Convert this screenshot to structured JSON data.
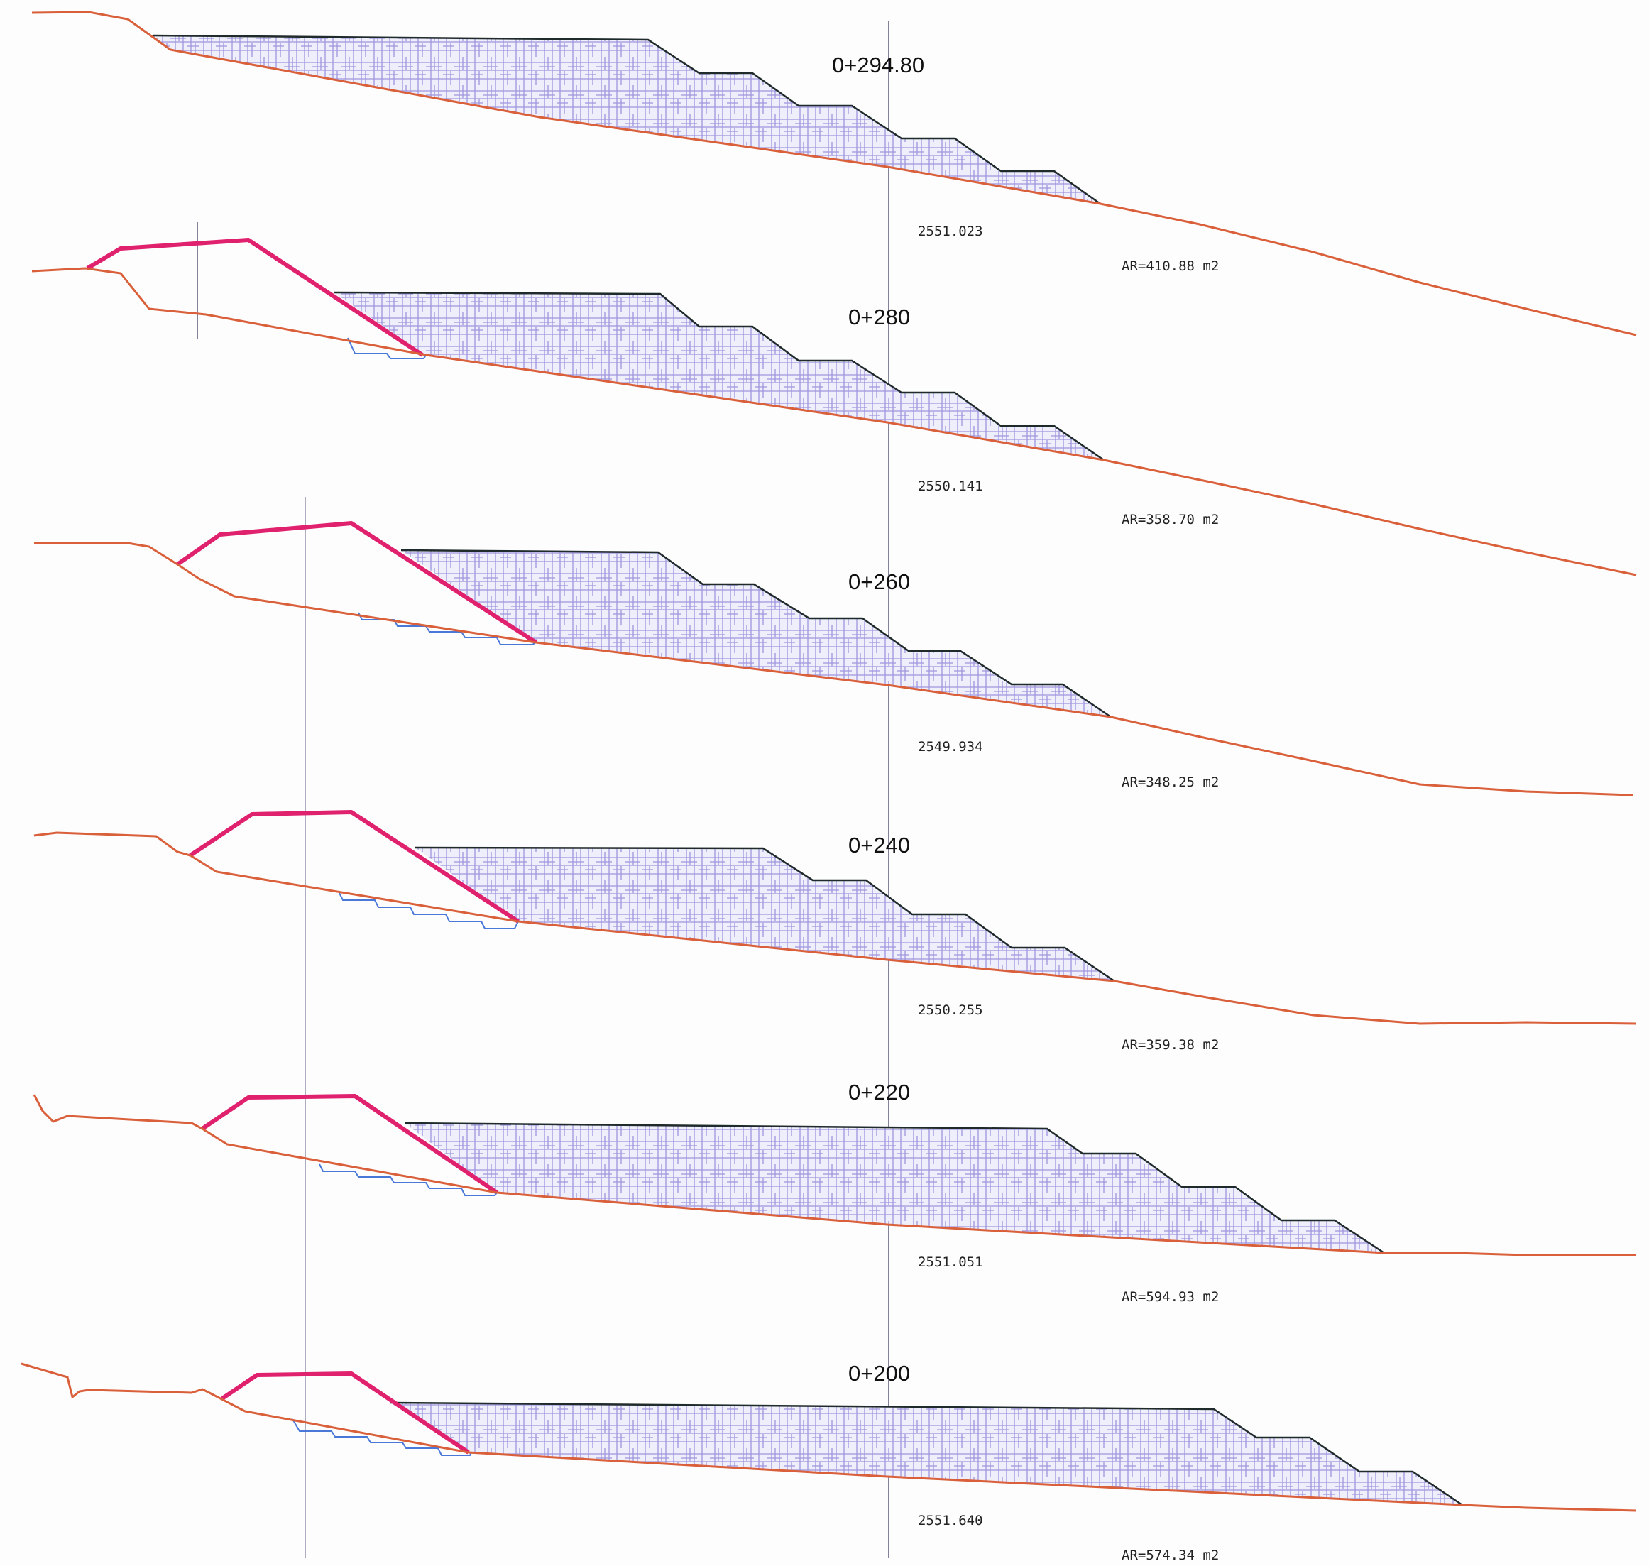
{
  "colors": {
    "ground": "#d9603a",
    "berm": "#e0216e",
    "cut_outline": "#1f2a2a",
    "hatch": "#8a7fd6",
    "hatch_fill": "#efeefb",
    "steps": "#4a78d8",
    "axis_line": "#5a5a7a"
  },
  "sections": [
    {
      "station": "0+294.80",
      "elevation": "2551.023",
      "area": "AR=410.88  m2"
    },
    {
      "station": "0+280",
      "elevation": "2550.141",
      "area": "AR=358.70  m2"
    },
    {
      "station": "0+260",
      "elevation": "2549.934",
      "area": "AR=348.25  m2"
    },
    {
      "station": "0+240",
      "elevation": "2550.255",
      "area": "AR=359.38  m2"
    },
    {
      "station": "0+220",
      "elevation": "2551.051",
      "area": "AR=594.93  m2"
    },
    {
      "station": "0+200",
      "elevation": "2551.640",
      "area": "AR=574.34  m2"
    }
  ]
}
